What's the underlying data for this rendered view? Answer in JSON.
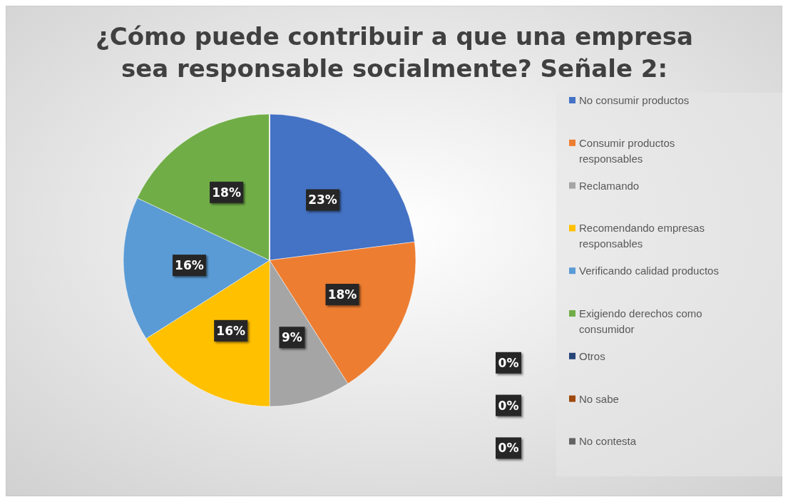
{
  "chart_data": {
    "type": "pie",
    "title": "¿Cómo puede contribuir a que una empresa sea responsable socialmente? Señale 2:",
    "categories": [
      "No consumir productos",
      "Consumir productos responsables",
      "Reclamando",
      "Recomendando empresas responsables",
      "Verificando calidad productos",
      "Exigiendo derechos como consumidor",
      "Otros",
      "No sabe",
      "No contesta"
    ],
    "values": [
      23,
      18,
      9,
      16,
      16,
      18,
      0,
      0,
      0
    ],
    "colors": [
      "#4472c4",
      "#ed7d31",
      "#a5a5a5",
      "#ffc000",
      "#5b9bd5",
      "#70ad47",
      "#264478",
      "#9e480e",
      "#636363"
    ],
    "value_labels": [
      "23%",
      "18%",
      "9%",
      "16%",
      "16%",
      "18%",
      "0%",
      "0%",
      "0%"
    ],
    "legend": "right"
  }
}
